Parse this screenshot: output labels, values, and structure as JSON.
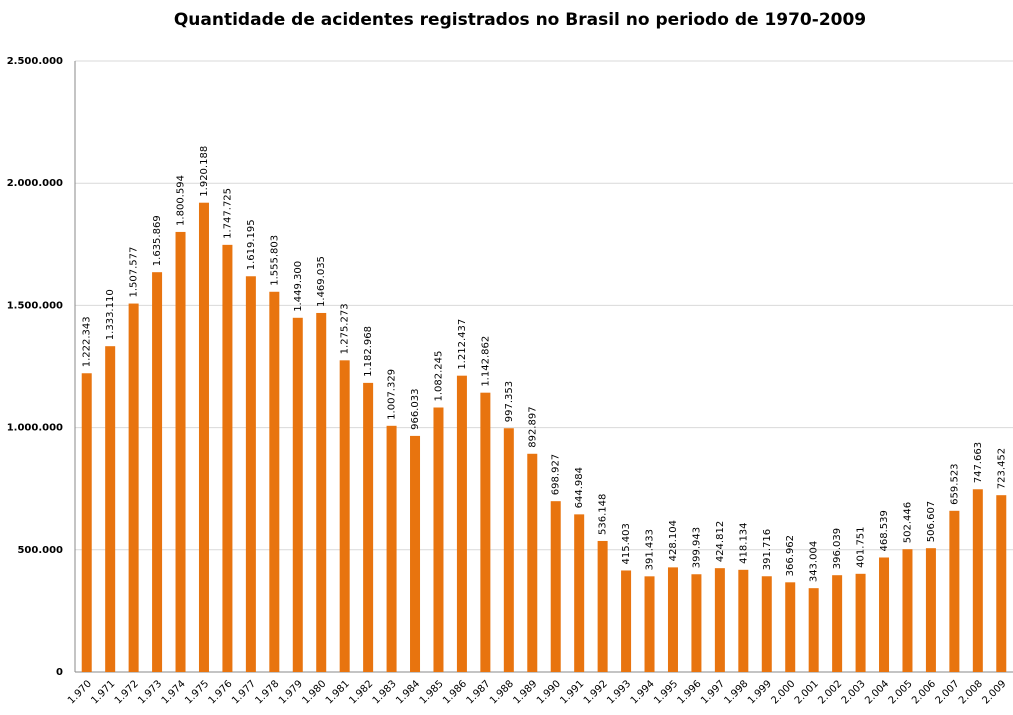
{
  "chart_data": {
    "type": "bar",
    "title": "Quantidade de acidentes registrados no Brasil no periodo de 1970-2009",
    "categories": [
      "1.970",
      "1.971",
      "1.972",
      "1.973",
      "1.974",
      "1.975",
      "1.976",
      "1.977",
      "1.978",
      "1.979",
      "1.980",
      "1.981",
      "1.982",
      "1.983",
      "1.984",
      "1.985",
      "1.986",
      "1.987",
      "1.988",
      "1.989",
      "1.990",
      "1.991",
      "1.992",
      "1.993",
      "1.994",
      "1.995",
      "1.996",
      "1.997",
      "1.998",
      "1.999",
      "2.000",
      "2.001",
      "2.002",
      "2.003",
      "2.004",
      "2.005",
      "2.006",
      "2.007",
      "2.008",
      "2.009"
    ],
    "values": [
      1222343,
      1333110,
      1507577,
      1635869,
      1800594,
      1920188,
      1747725,
      1619195,
      1555803,
      1449300,
      1469035,
      1275273,
      1182968,
      1007329,
      966033,
      1082245,
      1212437,
      1142862,
      997353,
      892897,
      698927,
      644984,
      536148,
      415403,
      391433,
      428104,
      399943,
      424812,
      418134,
      391716,
      366962,
      343004,
      396039,
      401751,
      468539,
      502446,
      506607,
      659523,
      747663,
      723452
    ],
    "value_labels": [
      "1.222.343",
      "1.333.110",
      "1.507.577",
      "1.635.869",
      "1.800.594",
      "1.920.188",
      "1.747.725",
      "1.619.195",
      "1.555.803",
      "1.449.300",
      "1.469.035",
      "1.275.273",
      "1.182.968",
      "1.007.329",
      "966.033",
      "1.082.245",
      "1.212.437",
      "1.142.862",
      "997.353",
      "892.897",
      "698.927",
      "644.984",
      "536.148",
      "415.403",
      "391.433",
      "428.104",
      "399.943",
      "424.812",
      "418.134",
      "391.716",
      "366.962",
      "343.004",
      "396.039",
      "401.751",
      "468.539",
      "502.446",
      "506.607",
      "659.523",
      "747.663",
      "723.452"
    ],
    "color": "#e8740f",
    "ylim": [
      0,
      2500000
    ],
    "yticks": [
      0,
      {
        "value": 500000,
        "label": "500.000"
      },
      {
        "value": 1000000,
        "label": "1.000.000"
      },
      {
        "value": 1500000,
        "label": "1.500.000"
      },
      {
        "value": 2000000,
        "label": "2.000.000"
      },
      {
        "value": 2500000,
        "label": "2.500.000"
      }
    ],
    "grid": true
  }
}
